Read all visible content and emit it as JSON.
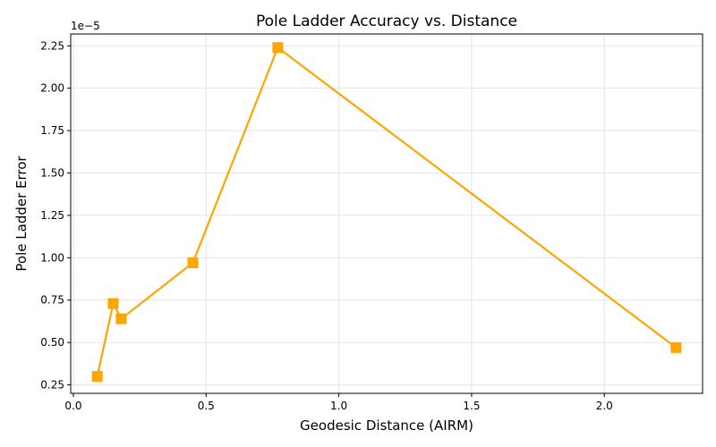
{
  "chart_data": {
    "type": "line",
    "title": "Pole Ladder Accuracy vs. Distance",
    "xlabel": "Geodesic Distance (AIRM)",
    "ylabel": "Pole Ladder Error",
    "y_offset_label": "1e−5",
    "xlim": [
      -0.01,
      2.37
    ],
    "ylim": [
      0.2,
      2.32
    ],
    "x_ticks": [
      0.0,
      0.5,
      1.0,
      1.5,
      2.0
    ],
    "x_tick_labels": [
      "0.0",
      "0.5",
      "1.0",
      "1.5",
      "2.0"
    ],
    "y_ticks": [
      0.25,
      0.5,
      0.75,
      1.0,
      1.25,
      1.5,
      1.75,
      2.0,
      2.25
    ],
    "y_tick_labels": [
      "0.25",
      "0.50",
      "0.75",
      "1.00",
      "1.25",
      "1.50",
      "1.75",
      "2.00",
      "2.25"
    ],
    "grid": true,
    "series": [
      {
        "color": "#FFA500",
        "marker": "square",
        "points": [
          {
            "x": 0.09,
            "y": 0.3
          },
          {
            "x": 0.15,
            "y": 0.73
          },
          {
            "x": 0.18,
            "y": 0.64
          },
          {
            "x": 0.45,
            "y": 0.97
          },
          {
            "x": 0.77,
            "y": 2.24
          },
          {
            "x": 2.27,
            "y": 0.47
          }
        ]
      }
    ]
  }
}
